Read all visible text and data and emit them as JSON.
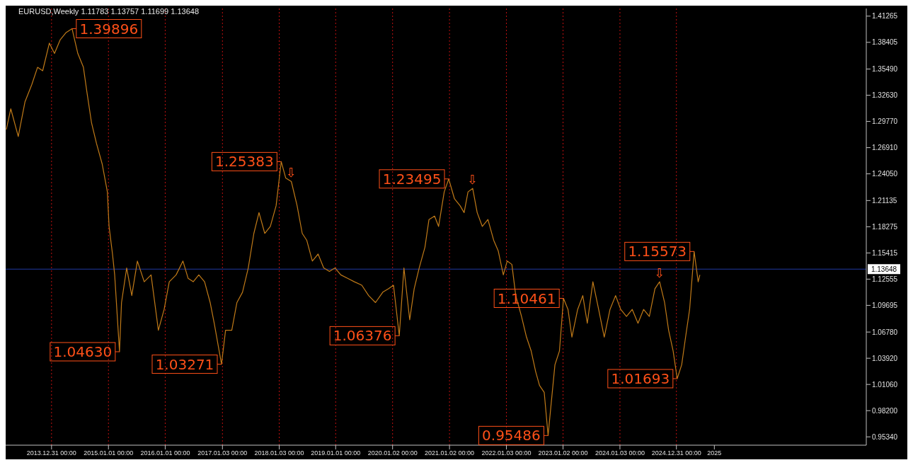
{
  "chart_data": {
    "type": "line",
    "title": "EURUSD,Weekly  1.11783 1.13757 1.11699 1.13648",
    "x": [
      "2013-03-15",
      "2013-04-13",
      "2013-05-31",
      "2013-07-13",
      "2013-08-26",
      "2013-10-02",
      "2013-11-04",
      "2013-12-17",
      "2014-01-19",
      "2014-02-25",
      "2014-04-02",
      "2014-05-12",
      "2014-06-18",
      "2014-07-24",
      "2014-08-15",
      "2014-09-14",
      "2014-10-16",
      "2014-11-22",
      "2014-12-25",
      "2015-01-05",
      "2015-01-27",
      "2015-02-10",
      "2015-03-13",
      "2015-03-26",
      "2015-04-28",
      "2015-05-31",
      "2015-07-06",
      "2015-08-19",
      "2015-10-02",
      "2015-11-18",
      "2015-12-25",
      "2016-01-27",
      "2016-03-11",
      "2016-04-24",
      "2016-05-27",
      "2016-06-29",
      "2016-08-04",
      "2016-09-10",
      "2016-10-16",
      "2016-11-11",
      "2016-12-28",
      "2017-01-23",
      "2017-03-04",
      "2017-04-06",
      "2017-05-12",
      "2017-06-18",
      "2017-07-24",
      "2017-08-26",
      "2017-10-02",
      "2017-11-07",
      "2017-12-14",
      "2018-01-16",
      "2018-02-14",
      "2018-03-22",
      "2018-04-28",
      "2018-05-31",
      "2018-06-29",
      "2018-08-04",
      "2018-09-10",
      "2018-10-16",
      "2018-11-22",
      "2018-12-28",
      "2019-02-03",
      "2019-03-19",
      "2019-05-01",
      "2019-06-18",
      "2019-08-01",
      "2019-09-14",
      "2019-10-31",
      "2019-12-06",
      "2020-01-08",
      "2020-02-14",
      "2020-03-15",
      "2020-04-21",
      "2020-05-20",
      "2020-06-21",
      "2020-07-28",
      "2020-08-23",
      "2020-09-28",
      "2020-10-24",
      "2020-11-29",
      "2020-12-28",
      "2021-02-03",
      "2021-03-11",
      "2021-04-06",
      "2021-05-01",
      "2021-05-31",
      "2021-06-29",
      "2021-08-01",
      "2021-09-06",
      "2021-10-13",
      "2021-11-11",
      "2021-12-14",
      "2022-01-08",
      "2022-02-07",
      "2022-03-04",
      "2022-04-10",
      "2022-05-12",
      "2022-06-11",
      "2022-07-10",
      "2022-08-04",
      "2022-09-03",
      "2022-09-28",
      "2022-10-16",
      "2022-11-11",
      "2022-12-10",
      "2023-01-05",
      "2023-02-03",
      "2023-02-28",
      "2023-04-06",
      "2023-05-09",
      "2023-06-07",
      "2023-07-13",
      "2023-08-19",
      "2023-09-24",
      "2023-10-31",
      "2023-12-06",
      "2024-01-08",
      "2024-02-14",
      "2024-03-22",
      "2024-04-28",
      "2024-06-03",
      "2024-07-10",
      "2024-08-15",
      "2024-09-14",
      "2024-10-16",
      "2024-11-11",
      "2024-12-10",
      "2025-01-05",
      "2025-02-03",
      "2025-02-28",
      "2025-03-26",
      "2025-04-24",
      "2025-05-20",
      "2025-05-31"
    ],
    "series": [
      {
        "color": "#c07a18",
        "values": [
          1.2888,
          1.3115,
          1.2812,
          1.319,
          1.3379,
          1.3568,
          1.353,
          1.3832,
          1.3719,
          1.387,
          1.3945,
          1.39896,
          1.3719,
          1.3568,
          1.3303,
          1.2964,
          1.2737,
          1.251,
          1.2208,
          1.1831,
          1.1529,
          1.1302,
          1.0463,
          1.1,
          1.1378,
          1.1076,
          1.1453,
          1.1227,
          1.1302,
          1.0698,
          1.0925,
          1.1227,
          1.1302,
          1.1453,
          1.1265,
          1.1227,
          1.1302,
          1.1227,
          1.1,
          1.0774,
          1.03271,
          1.0698,
          1.0698,
          1.1,
          1.1113,
          1.1378,
          1.1755,
          1.1982,
          1.1755,
          1.1831,
          1.2057,
          1.25383,
          1.2359,
          1.2321,
          1.2057,
          1.1755,
          1.168,
          1.1453,
          1.1529,
          1.1378,
          1.134,
          1.1378,
          1.1302,
          1.1265,
          1.1227,
          1.1189,
          1.1076,
          1.1,
          1.1113,
          1.1151,
          1.1189,
          1.06376,
          1.1378,
          1.0812,
          1.1151,
          1.1378,
          1.1604,
          1.1906,
          1.1944,
          1.1831,
          1.2208,
          1.23495,
          1.2132,
          1.2057,
          1.1982,
          1.2208,
          1.2246,
          1.1982,
          1.1831,
          1.1906,
          1.168,
          1.1566,
          1.1302,
          1.1453,
          1.1416,
          1.1076,
          1.0849,
          1.0623,
          1.0472,
          1.0246,
          1.0095,
          1.002,
          0.95486,
          0.9867,
          1.0321,
          1.0472,
          1.10461,
          1.0925,
          1.0623,
          1.0925,
          1.1076,
          1.0774,
          1.1227,
          1.0925,
          1.0623,
          1.0925,
          1.1076,
          1.0925,
          1.0849,
          1.0925,
          1.0774,
          1.0925,
          1.0849,
          1.1151,
          1.1227,
          1.1,
          1.0698,
          1.0472,
          1.01693,
          1.0321,
          1.0623,
          1.0925,
          1.15573,
          1.1227,
          1.1302
        ]
      }
    ],
    "xlim": [
      "2013-03-11",
      "2028-05-05"
    ],
    "xticks": [
      {
        "value": "2013-12-31",
        "label": "2013.12.31 00:00"
      },
      {
        "value": "2015-01-01",
        "label": "2015.01.01 00:00"
      },
      {
        "value": "2016-01-01",
        "label": "2016.01.01 00:00"
      },
      {
        "value": "2017-01-03",
        "label": "2017.01.03 00:00"
      },
      {
        "value": "2018-01-03",
        "label": "2018.01.03 00:00"
      },
      {
        "value": "2019-01-01",
        "label": "2019.01.01 00:00"
      },
      {
        "value": "2020-01-02",
        "label": "2020.01.02 00:00"
      },
      {
        "value": "2021-01-02",
        "label": "2021.01.02 00:00"
      },
      {
        "value": "2022-01-03",
        "label": "2022.01.03 00:00"
      },
      {
        "value": "2023-01-02",
        "label": "2023.01.02 00:00"
      },
      {
        "value": "2024-01-03",
        "label": "2024.01.03 00:00"
      },
      {
        "value": "2024-12-31",
        "label": "2024.12.31 00:00"
      },
      {
        "value": "2025-09-01",
        "label": "2025"
      }
    ],
    "ylim": [
      0.9443,
      1.421
    ],
    "yticks": [
      {
        "value": 0.9534,
        "label": "0.95340"
      },
      {
        "value": 0.982,
        "label": "0.98200"
      },
      {
        "value": 1.0106,
        "label": "1.01060"
      },
      {
        "value": 1.0392,
        "label": "1.03920"
      },
      {
        "value": 1.0678,
        "label": "1.06780"
      },
      1.09695,
      1.12555,
      1.15415,
      1.18275,
      1.21135,
      {
        "value": 1.2405,
        "label": "1.24050"
      },
      {
        "value": 1.2691,
        "label": "1.26910"
      },
      {
        "value": 1.2977,
        "label": "1.29770"
      },
      {
        "value": 1.3263,
        "label": "1.32630"
      },
      {
        "value": 1.3549,
        "label": "1.35490"
      },
      1.38405,
      1.41265
    ],
    "grid": false,
    "ref_lines": [
      {
        "axis": "y",
        "value": 1.13648,
        "label": "1.13648",
        "color": "#2038a0",
        "line_style": "solid"
      },
      {
        "axis": "x",
        "value": "2013-12-31",
        "color": "#c01010",
        "line_style": "dotted"
      },
      {
        "axis": "x",
        "value": "2015-01-01",
        "color": "#c01010",
        "line_style": "dotted"
      },
      {
        "axis": "x",
        "value": "2016-01-01",
        "color": "#c01010",
        "line_style": "dotted"
      },
      {
        "axis": "x",
        "value": "2017-01-03",
        "color": "#c01010",
        "line_style": "dotted"
      },
      {
        "axis": "x",
        "value": "2018-01-03",
        "color": "#c01010",
        "line_style": "dotted"
      },
      {
        "axis": "x",
        "value": "2019-01-01",
        "color": "#c01010",
        "line_style": "dotted"
      },
      {
        "axis": "x",
        "value": "2020-01-02",
        "color": "#c01010",
        "line_style": "dotted"
      },
      {
        "axis": "x",
        "value": "2021-01-02",
        "color": "#c01010",
        "line_style": "dotted"
      },
      {
        "axis": "x",
        "value": "2022-01-03",
        "color": "#c01010",
        "line_style": "dotted"
      },
      {
        "axis": "x",
        "value": "2023-01-02",
        "color": "#c01010",
        "line_style": "dotted"
      },
      {
        "axis": "x",
        "value": "2024-01-03",
        "color": "#c01010",
        "line_style": "dotted"
      },
      {
        "axis": "x",
        "value": "2024-12-31",
        "color": "#c01010",
        "line_style": "dotted"
      }
    ],
    "annotations": [
      {
        "text": "1.39896",
        "x": "2014-05-12",
        "y": 1.39896
      },
      {
        "text": "1.04630",
        "x": "2015-03-13",
        "y": 1.0463
      },
      {
        "text": "1.03271",
        "x": "2016-12-28",
        "y": 1.03271
      },
      {
        "text": "1.25383",
        "x": "2018-01-16",
        "y": 1.25383
      },
      {
        "text": "1.06376",
        "x": "2020-02-14",
        "y": 1.06376
      },
      {
        "text": "1.23495",
        "x": "2020-12-28",
        "y": 1.23495
      },
      {
        "text": "0.95486",
        "x": "2022-09-28",
        "y": 0.95486
      },
      {
        "text": "1.10461",
        "x": "2023-01-05",
        "y": 1.10461
      },
      {
        "text": "1.01693",
        "x": "2025-01-05",
        "y": 1.01693
      },
      {
        "text": "1.15573",
        "x": "2025-04-24",
        "y": 1.15573
      },
      {
        "text": "⇩",
        "x": "2018-03-22",
        "y": 1.2321
      },
      {
        "text": "⇩",
        "x": "2021-05-31",
        "y": 1.2246
      },
      {
        "text": "⇩",
        "x": "2024-09-14",
        "y": 1.1227
      }
    ],
    "line_style": "solid",
    "marker": "none"
  }
}
